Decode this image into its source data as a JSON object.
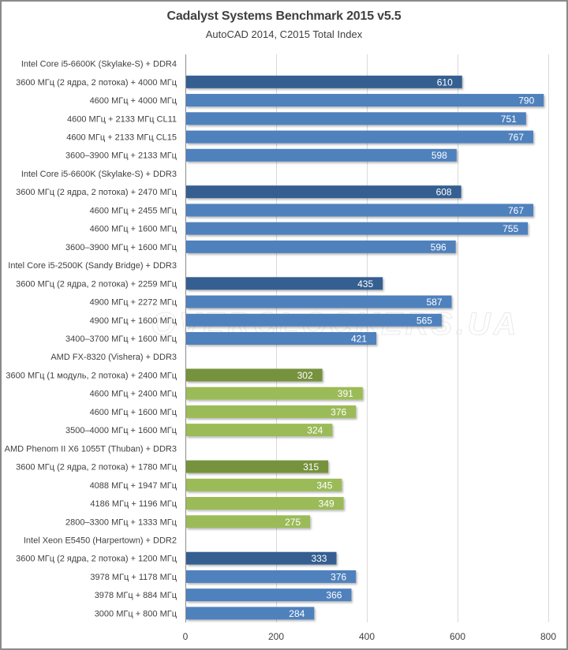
{
  "chart_data": {
    "type": "bar",
    "orientation": "horizontal",
    "title": "Cadalyst Systems Benchmark 2015 v5.5",
    "subtitle": "AutoCAD 2014, C2015 Total Index",
    "xlabel": "",
    "ylabel": "",
    "xlim": [
      0,
      800
    ],
    "xticks": [
      0,
      200,
      400,
      600,
      800
    ],
    "grid": true,
    "legend": "none",
    "watermark": "OVERCLOCKERS.UA",
    "colors": {
      "intel_base": "#355F91",
      "intel": "#4F81BD",
      "amd_base": "#76923C",
      "amd": "#9BBB59"
    },
    "categories": [
      {
        "label": "Intel Core i5-6600K (Skylake-S) + DDR4",
        "value": null,
        "group": "header"
      },
      {
        "label": "3600 МГц (2 ядра, 2 потока) + 4000 МГц",
        "value": 610,
        "group": "intel_base"
      },
      {
        "label": "4600 МГц + 4000 МГц",
        "value": 790,
        "group": "intel"
      },
      {
        "label": "4600 МГц + 2133 МГц CL11",
        "value": 751,
        "group": "intel"
      },
      {
        "label": "4600 МГц + 2133 МГц CL15",
        "value": 767,
        "group": "intel"
      },
      {
        "label": "3600–3900 МГц + 2133 МГц",
        "value": 598,
        "group": "intel"
      },
      {
        "label": "Intel Core i5-6600K (Skylake-S) + DDR3",
        "value": null,
        "group": "header"
      },
      {
        "label": "3600 МГц (2 ядра, 2 потока) + 2470 МГц",
        "value": 608,
        "group": "intel_base"
      },
      {
        "label": "4600 МГц + 2455 МГц",
        "value": 767,
        "group": "intel"
      },
      {
        "label": "4600 МГц + 1600 МГц",
        "value": 755,
        "group": "intel"
      },
      {
        "label": "3600–3900 МГц + 1600 МГц",
        "value": 596,
        "group": "intel"
      },
      {
        "label": "Intel Core i5-2500K (Sandy Bridge) + DDR3",
        "value": null,
        "group": "header"
      },
      {
        "label": "3600 МГц (2 ядра, 2 потока) + 2259 МГц",
        "value": 435,
        "group": "intel_base"
      },
      {
        "label": "4900 МГц + 2272 МГц",
        "value": 587,
        "group": "intel"
      },
      {
        "label": "4900 МГц + 1600 МГц",
        "value": 565,
        "group": "intel"
      },
      {
        "label": "3400–3700 МГц + 1600 МГц",
        "value": 421,
        "group": "intel"
      },
      {
        "label": "AMD FX-8320 (Vishera) + DDR3",
        "value": null,
        "group": "header"
      },
      {
        "label": "3600 МГц (1 модуль, 2 потока) + 2400 МГц",
        "value": 302,
        "group": "amd_base"
      },
      {
        "label": "4600 МГц + 2400 МГц",
        "value": 391,
        "group": "amd"
      },
      {
        "label": "4600 МГц + 1600 МГц",
        "value": 376,
        "group": "amd"
      },
      {
        "label": "3500–4000 МГц + 1600 МГц",
        "value": 324,
        "group": "amd"
      },
      {
        "label": "AMD Phenom II X6 1055T (Thuban) + DDR3",
        "value": null,
        "group": "header"
      },
      {
        "label": "3600 МГц (2 ядра, 2 потока) + 1780 МГц",
        "value": 315,
        "group": "amd_base"
      },
      {
        "label": "4088 МГц + 1947 МГц",
        "value": 345,
        "group": "amd"
      },
      {
        "label": "4186 МГц + 1196 МГц",
        "value": 349,
        "group": "amd"
      },
      {
        "label": "2800–3300 МГц + 1333 МГц",
        "value": 275,
        "group": "amd"
      },
      {
        "label": "Intel Xeon E5450 (Harpertown) + DDR2",
        "value": null,
        "group": "header"
      },
      {
        "label": "3600 МГц (2 ядра, 2 потока) + 1200 МГц",
        "value": 333,
        "group": "intel_base"
      },
      {
        "label": "3978 МГц + 1178 МГц",
        "value": 376,
        "group": "intel"
      },
      {
        "label": "3978 МГц + 884 МГц",
        "value": 366,
        "group": "intel"
      },
      {
        "label": "3000 МГц + 800 МГц",
        "value": 284,
        "group": "intel"
      }
    ]
  }
}
